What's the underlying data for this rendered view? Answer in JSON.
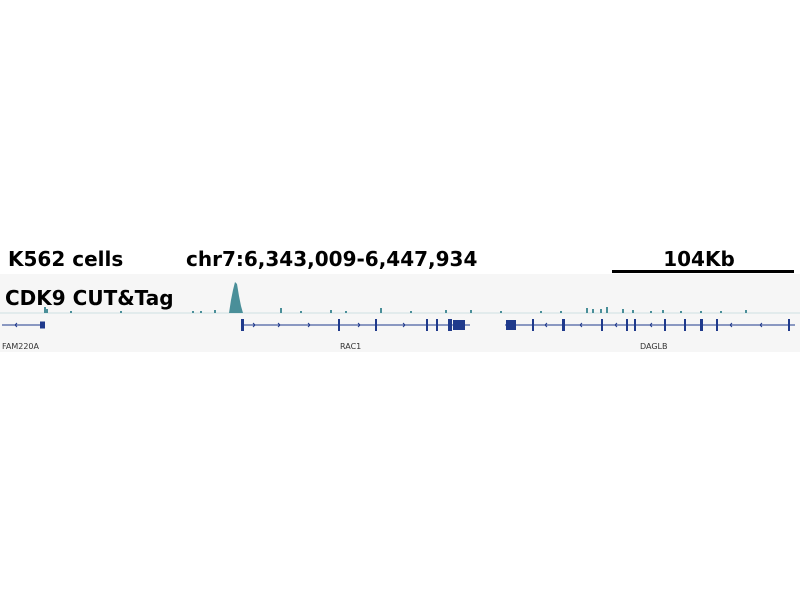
{
  "header": {
    "sample": "K562 cells",
    "locus": "chr7:6,343,009-6,447,934",
    "scale": "104Kb"
  },
  "track": {
    "name": "CDK9 CUT&Tag"
  },
  "genes": [
    {
      "label": "FAM220A"
    },
    {
      "label": "RAC1"
    },
    {
      "label": "DAGLB"
    }
  ]
}
